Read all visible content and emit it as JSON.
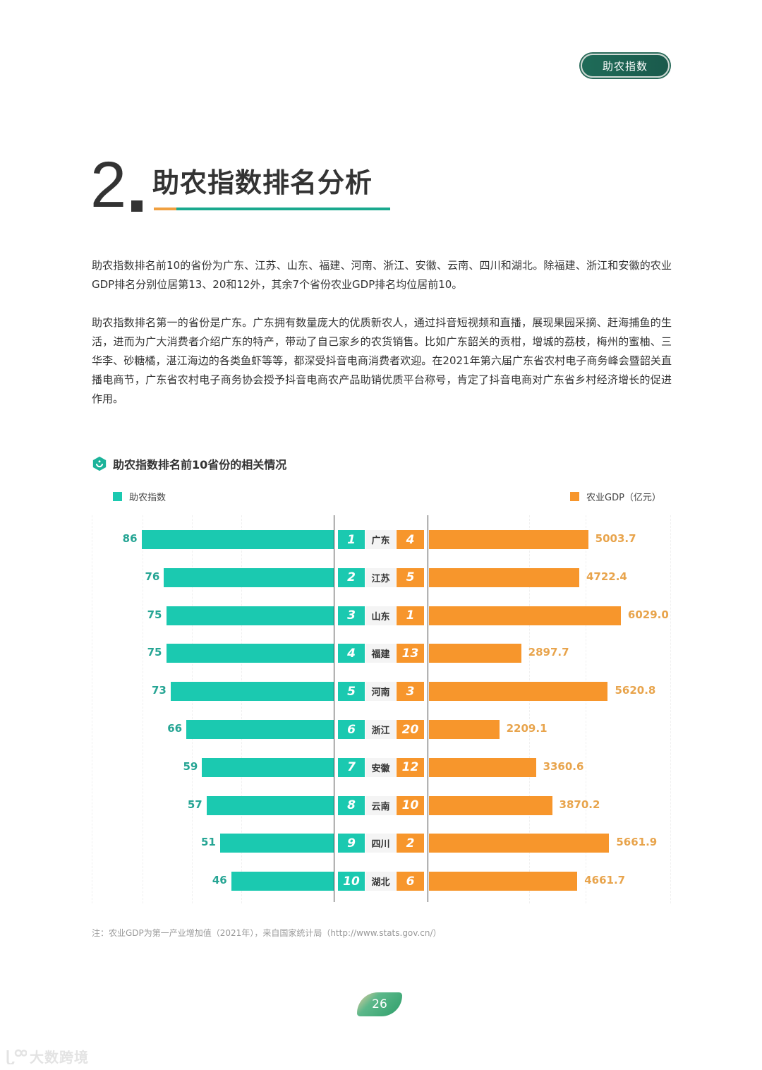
{
  "header": {
    "section_badge": "助农指数"
  },
  "heading": {
    "number": "2",
    "title": "助农指数排名分析"
  },
  "paragraphs": [
    "助农指数排名前10的省份为广东、江苏、山东、福建、河南、浙江、安徽、云南、四川和湖北。除福建、浙江和安徽的农业GDP排名分别位居第13、20和12外，其余7个省份农业GDP排名均位居前10。",
    "助农指数排名第一的省份是广东。广东拥有数量庞大的优质新农人，通过抖音短视频和直播，展现果园采摘、赶海捕鱼的生活，进而为广大消费者介绍广东的特产，带动了自己家乡的农货销售。比如广东韶关的贡柑，增城的荔枝，梅州的蜜柚、三华李、砂糖橘，湛江海边的各类鱼虾等等，都深受抖音电商消费者欢迎。在2021年第六届广东省农村电子商务峰会暨韶关直播电商节，广东省农村电子商务协会授予抖音电商农产品助销优质平台称号，肯定了抖音电商对广东省乡村经济增长的促进作用。"
  ],
  "chart": {
    "title": "助农指数排名前10省份的相关情况",
    "icon": "hexagon-smile-icon",
    "legend_left": "助农指数",
    "legend_right": "农业GDP（亿元）",
    "colors": {
      "index": "#1bc9b0",
      "gdp": "#f7962c"
    }
  },
  "chart_data": {
    "type": "bar",
    "title": "助农指数排名前10省份的相关情况",
    "categories": [
      "广东",
      "江苏",
      "山东",
      "福建",
      "河南",
      "浙江",
      "安徽",
      "云南",
      "四川",
      "湖北"
    ],
    "series": [
      {
        "name": "助农指数",
        "values": [
          86,
          76,
          75,
          75,
          73,
          66,
          59,
          57,
          51,
          46
        ],
        "ranks": [
          1,
          2,
          3,
          4,
          5,
          6,
          7,
          8,
          9,
          10
        ],
        "direction": "left"
      },
      {
        "name": "农业GDP（亿元）",
        "values": [
          5003.7,
          4722.4,
          6029.0,
          2897.7,
          5620.8,
          2209.1,
          3360.6,
          3870.2,
          5661.9,
          4661.7
        ],
        "value_labels": [
          "5003.7",
          "4722.4",
          "6029.0",
          "2897.7",
          "5620.8",
          "2209.1",
          "3360.6",
          "3870.2",
          "5661.9",
          "4661.7"
        ],
        "ranks": [
          4,
          5,
          1,
          13,
          3,
          20,
          12,
          10,
          2,
          6
        ],
        "direction": "right"
      }
    ],
    "orientation": "horizontal-butterfly",
    "legend_position": "top"
  },
  "note": "注：农业GDP为第一产业增加值（2021年），来自国家统计局（http://www.stats.gov.cn/）",
  "footer": {
    "page_number": "26",
    "watermark": "大数跨境"
  }
}
